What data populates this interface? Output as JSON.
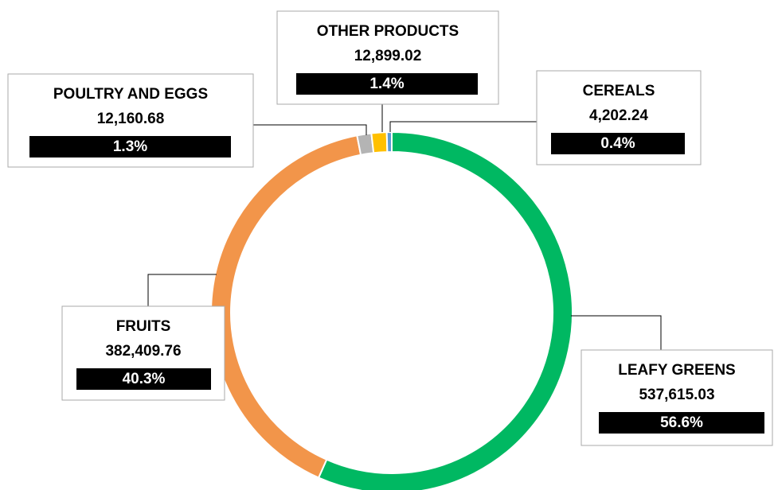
{
  "chart_data": {
    "type": "donut",
    "categories": [
      "LEAFY GREENS",
      "FRUITS",
      "POULTRY AND EGGS",
      "OTHER PRODUCTS",
      "CEREALS"
    ],
    "values": [
      537615.03,
      382409.76,
      12160.68,
      12899.02,
      4202.24
    ],
    "value_labels": [
      "537,615.03",
      "382,409.76",
      "12,160.68",
      "12,899.02",
      "4,202.24"
    ],
    "percent_labels": [
      "56.6%",
      "40.3%",
      "1.3%",
      "1.4%",
      "0.4%"
    ],
    "colors": [
      "#00b862",
      "#f2954a",
      "#b4b4b4",
      "#ffc000",
      "#5b9bd5"
    ]
  }
}
